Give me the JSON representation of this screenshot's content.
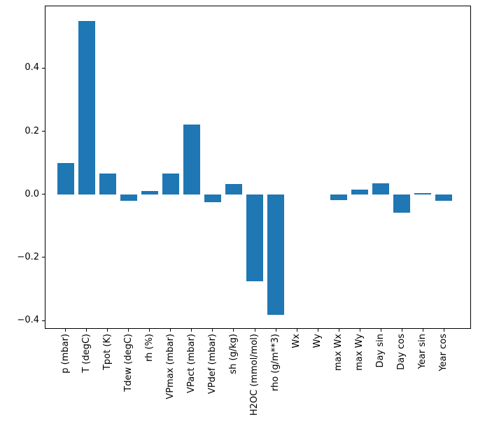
{
  "chart_data": {
    "type": "bar",
    "title": "",
    "xlabel": "",
    "ylabel": "",
    "categories": [
      "p (mbar)",
      "T (degC)",
      "Tpot (K)",
      "Tdew (degC)",
      "rh (%)",
      "VPmax (mbar)",
      "VPact (mbar)",
      "VPdef (mbar)",
      "sh (g/kg)",
      "H2OC (mmol/mol)",
      "rho (g/m**3)",
      "Wx",
      "Wy",
      "max Wx",
      "max Wy",
      "Day sin",
      "Day cos",
      "Year sin",
      "Year cos"
    ],
    "values": [
      0.1,
      0.549,
      0.065,
      -0.02,
      0.011,
      0.067,
      0.221,
      -0.025,
      0.032,
      -0.275,
      -0.382,
      0.0,
      0.0,
      -0.019,
      0.016,
      0.036,
      -0.058,
      0.004,
      -0.021
    ],
    "bar_color": "#1f77b4",
    "bar_width_units": 0.8,
    "xlim": [
      -0.95,
      19.25
    ],
    "ylim": [
      -0.4244,
      0.5962
    ],
    "yticks": {
      "values": [
        0.4,
        0.2,
        0.0,
        -0.2,
        -0.4
      ],
      "labels": [
        "0.4",
        "0.2",
        "0.0",
        "−0.2",
        "−0.4"
      ]
    },
    "xtick_rotation_deg": 90,
    "grid": false,
    "legend": null,
    "spine_color": "#000000",
    "background_color": "#ffffff"
  }
}
